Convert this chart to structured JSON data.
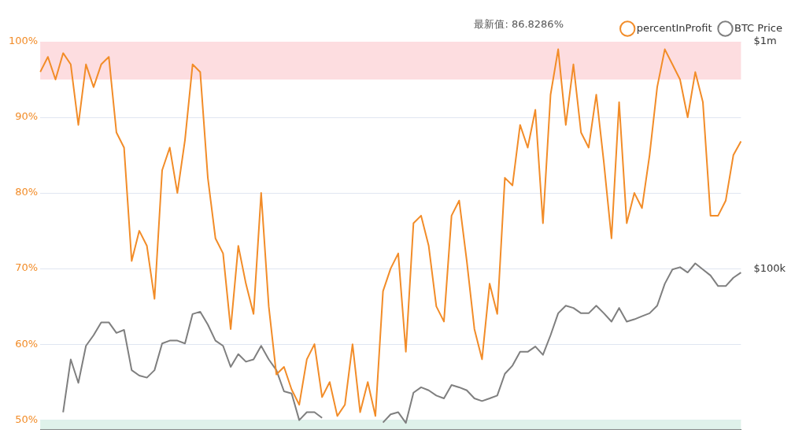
{
  "chart_data": {
    "type": "line",
    "annotations": [
      "最新值: 86.8286%"
    ],
    "categories": [
      null,
      null,
      null,
      null,
      null,
      null,
      null,
      null,
      null,
      null,
      null,
      null,
      null,
      null,
      null,
      null,
      null,
      null,
      null,
      null,
      null,
      null,
      null,
      null,
      null,
      null,
      null,
      null,
      null,
      null,
      null,
      null,
      null,
      null,
      null,
      null,
      null,
      null,
      null,
      null,
      null,
      null,
      null,
      null,
      null,
      null,
      null,
      null,
      null,
      null,
      null,
      null,
      null,
      null,
      null,
      null,
      null,
      null,
      null,
      null,
      null,
      null,
      null,
      null,
      null,
      null,
      null,
      null,
      null,
      null,
      null,
      null,
      null,
      null,
      null,
      null,
      null,
      null,
      null,
      null,
      null,
      null,
      null,
      null,
      null,
      null,
      null,
      null,
      null,
      null,
      null,
      null,
      null
    ],
    "series": [
      {
        "name": "percentInProfit",
        "color": "#f28c28",
        "values": [
          96,
          98,
          95,
          98.5,
          97,
          89,
          97,
          94,
          97,
          98,
          88,
          86,
          71,
          75,
          73,
          66,
          83,
          86,
          80,
          87,
          97,
          96,
          82,
          74,
          72,
          62,
          73,
          68,
          64,
          80,
          65,
          56,
          57,
          54,
          52,
          58,
          60,
          53,
          55,
          50.5,
          52,
          60,
          51,
          55,
          50.5,
          67,
          70,
          72,
          59,
          76,
          77,
          73,
          65,
          63,
          77,
          79,
          71,
          62,
          58,
          68,
          64,
          82,
          81,
          89,
          86,
          91,
          76,
          93,
          99,
          89,
          97,
          88,
          86,
          93,
          84,
          74,
          92,
          76,
          80,
          78,
          85,
          94,
          99,
          97,
          95,
          90,
          96,
          92,
          77,
          77,
          79,
          85,
          86.83
        ]
      },
      {
        "name": "BTC Price",
        "color": "#7f7f7f",
        "axis": "y2",
        "values": [
          null,
          null,
          null,
          23300,
          39800,
          31400,
          45700,
          50900,
          58000,
          58000,
          52100,
          53700,
          35700,
          33800,
          33100,
          35700,
          46800,
          48200,
          48200,
          46800,
          63100,
          64600,
          56700,
          48200,
          45700,
          36900,
          42000,
          38900,
          39800,
          45700,
          39800,
          35700,
          28800,
          28200,
          21500,
          23300,
          23300,
          22000,
          null,
          null,
          null,
          null,
          null,
          null,
          null,
          21000,
          22800,
          23300,
          20900,
          28400,
          30000,
          29100,
          27600,
          26800,
          30700,
          30000,
          29100,
          26800,
          26100,
          26800,
          27600,
          34400,
          37400,
          43000,
          43000,
          45400,
          41700,
          50900,
          63600,
          68700,
          67100,
          63600,
          63600,
          68700,
          63600,
          58400,
          67100,
          58400,
          59800,
          61700,
          63600,
          68700,
          85800,
          99200,
          101500,
          96200,
          105500,
          99200,
          93300,
          83800,
          83800,
          91200,
          96200
        ]
      }
    ],
    "ylim": [
      48.75,
      100
    ],
    "yticks": [
      {
        "value": 50,
        "label": "50%"
      },
      {
        "value": 60,
        "label": "60%"
      },
      {
        "value": 70,
        "label": "70%"
      },
      {
        "value": 80,
        "label": "80%"
      },
      {
        "value": 90,
        "label": "90%"
      },
      {
        "value": 100,
        "label": "100%"
      }
    ],
    "y2lim": [
      19600,
      1000000
    ],
    "y2ticks": [
      {
        "value": 100000,
        "label": "$100k"
      },
      {
        "value": 1000000,
        "label": "$1m"
      }
    ],
    "log": "y2",
    "bands": [
      {
        "axis": "y",
        "from": 95,
        "to": 100,
        "color": "#fddde0"
      },
      {
        "axis": "y",
        "from": 48.75,
        "to": 50,
        "color": "#dff2ea"
      }
    ],
    "grid": "y",
    "legend": "top right"
  }
}
